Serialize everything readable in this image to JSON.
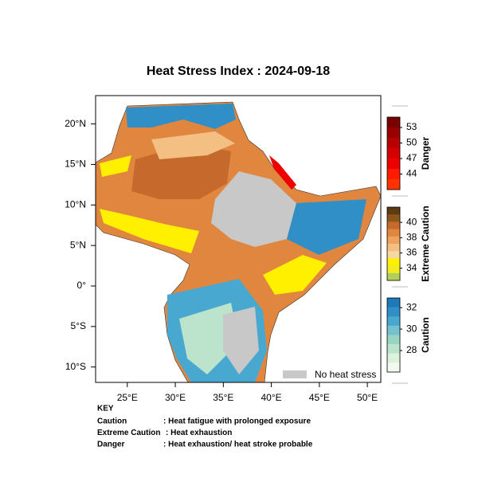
{
  "map": {
    "title": "Heat Stress Index : 2024-09-18",
    "xlim": [
      21.7,
      51.4
    ],
    "ylim": [
      -11.9,
      23.5
    ],
    "xticks": [
      {
        "value": 25,
        "label": "25°E"
      },
      {
        "value": 30,
        "label": "30°E"
      },
      {
        "value": 35,
        "label": "35°E"
      },
      {
        "value": 40,
        "label": "40°E"
      },
      {
        "value": 45,
        "label": "45°E"
      },
      {
        "value": 50,
        "label": "50°E"
      }
    ],
    "yticks": [
      {
        "value": 20,
        "label": "20°N"
      },
      {
        "value": 15,
        "label": "15°N"
      },
      {
        "value": 10,
        "label": "10°N"
      },
      {
        "value": 5,
        "label": "5°N"
      },
      {
        "value": 0,
        "label": "0°"
      },
      {
        "value": -5,
        "label": "5°S"
      },
      {
        "value": -10,
        "label": "10°S"
      }
    ],
    "colorbars": [
      {
        "name": "Danger",
        "lim": [
          41,
          55
        ],
        "ticks": [
          53,
          50,
          47,
          44
        ],
        "colors": [
          "#7a0000",
          "#990000",
          "#b80000",
          "#d40000",
          "#ee0000",
          "#ff1a00",
          "#ff3300"
        ]
      },
      {
        "name": "Extreme Caution",
        "lim": [
          32.4,
          42
        ],
        "ticks": [
          40,
          38,
          36,
          34
        ],
        "colors": [
          "#5e3a10",
          "#8a561c",
          "#c56a2c",
          "#e0863e",
          "#eda25e",
          "#f3bf82",
          "#f7d8a0",
          "#fff000",
          "#f2ec20",
          "#b2d058"
        ]
      },
      {
        "name": "Caution",
        "lim": [
          26,
          32.9
        ],
        "ticks": [
          32,
          30,
          28
        ],
        "colors": [
          "#1f78b8",
          "#2f8fc6",
          "#49a8d0",
          "#74c2d0",
          "#98d4c4",
          "#bce4cc",
          "#dcf2dc",
          "#f2faf0"
        ]
      }
    ],
    "legend": {
      "label": "No heat stress",
      "color": "#c8c8c8"
    },
    "key": {
      "title": "KEY",
      "rows": [
        {
          "term": "Caution",
          "desc": ": Heat fatigue with prolonged exposure"
        },
        {
          "term": "Extreme Caution",
          "desc": ": Heat exhaustion"
        },
        {
          "term": "Danger",
          "desc": ": Heat exhaustion/ heat stroke probable"
        }
      ]
    }
  }
}
